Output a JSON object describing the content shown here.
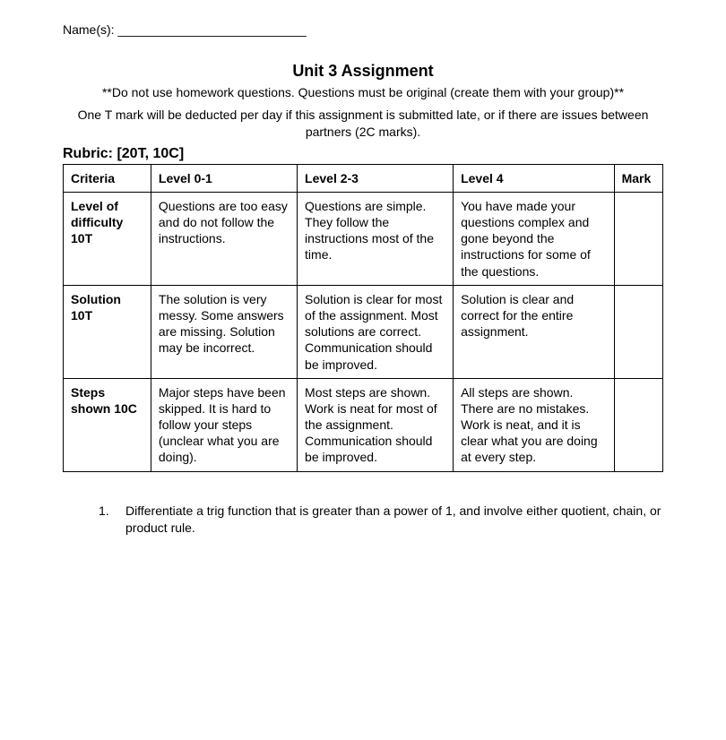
{
  "header": {
    "name_label": "Name(s): ___________________________"
  },
  "title": "Unit 3 Assignment",
  "notes": {
    "line1": "**Do not use homework questions. Questions must be original (create them with your group)**",
    "line2": "One T mark will be deducted per day if this assignment is submitted late, or if there are issues between partners (2C marks)."
  },
  "rubric_heading": "Rubric: [20T, 10C]",
  "table": {
    "columns": [
      "Criteria",
      "Level 0-1",
      "Level 2-3",
      "Level 4",
      "Mark"
    ],
    "rows": [
      {
        "criteria": "Level of difficulty 10T",
        "l01": "Questions are too easy and do not follow the instructions.",
        "l23": "Questions are simple. They follow the instructions most of the time.",
        "l4": "You have made your questions complex and gone beyond the instructions for some of the questions.",
        "mark": ""
      },
      {
        "criteria": "Solution 10T",
        "l01": "The solution is very messy. Some answers are missing. Solution may be incorrect.",
        "l23": "Solution is clear for most of the assignment. Most solutions are correct. Communication should be improved.",
        "l4": "Solution is clear and correct for the entire assignment.",
        "mark": ""
      },
      {
        "criteria": "Steps shown 10C",
        "l01": "Major steps have been skipped. It is hard to follow your steps (unclear what you are doing).",
        "l23": "Most steps are shown. Work is neat for most of the assignment. Communication should be improved.",
        "l4": "All steps are shown. There are no mistakes. Work is neat, and it is clear what you are doing at every step.",
        "mark": ""
      }
    ]
  },
  "question": {
    "number": "1.",
    "text": "Differentiate a trig function that is greater than a power of 1, and involve either quotient, chain, or product rule."
  }
}
